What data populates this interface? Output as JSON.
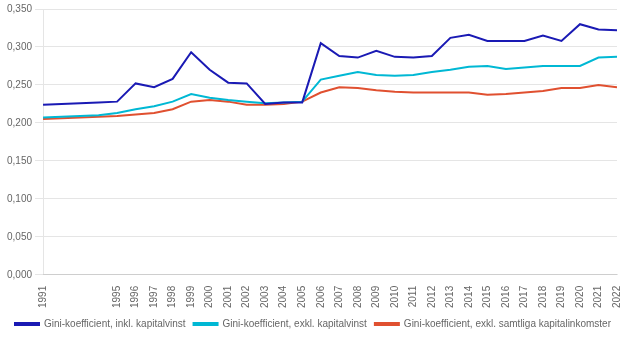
{
  "chart_data": {
    "type": "line",
    "x": [
      1991,
      1992,
      1993,
      1994,
      1995,
      1996,
      1997,
      1998,
      1999,
      2000,
      2001,
      2002,
      2003,
      2004,
      2005,
      2006,
      2007,
      2008,
      2009,
      2010,
      2011,
      2012,
      2013,
      2014,
      2015,
      2016,
      2017,
      2018,
      2019,
      2020,
      2021,
      2022
    ],
    "series": [
      {
        "name": "Gini-koefficient, inkl. kapitalvinst",
        "color": "#1a1ab4",
        "values": [
          0.224,
          0.225,
          0.226,
          0.227,
          0.228,
          0.252,
          0.247,
          0.258,
          0.293,
          0.27,
          0.253,
          0.252,
          0.225,
          0.227,
          0.227,
          0.305,
          0.288,
          0.286,
          0.295,
          0.287,
          0.286,
          0.288,
          0.312,
          0.316,
          0.308,
          0.308,
          0.308,
          0.315,
          0.308,
          0.33,
          0.323,
          0.322
        ]
      },
      {
        "name": "Gini-koefficient, exkl. kapitalvinst",
        "color": "#00b8d4",
        "values": [
          0.207,
          0.208,
          0.209,
          0.21,
          0.213,
          0.218,
          0.222,
          0.228,
          0.238,
          0.233,
          0.23,
          0.228,
          0.226,
          0.227,
          0.228,
          0.257,
          0.262,
          0.267,
          0.263,
          0.262,
          0.263,
          0.267,
          0.27,
          0.274,
          0.275,
          0.271,
          0.273,
          0.275,
          0.275,
          0.275,
          0.286,
          0.287
        ]
      },
      {
        "name": "Gini-koefficient, exkl. samtliga kapitalinkomster",
        "color": "#e05030",
        "values": [
          0.205,
          0.206,
          0.207,
          0.208,
          0.209,
          0.211,
          0.213,
          0.218,
          0.228,
          0.23,
          0.228,
          0.224,
          0.224,
          0.225,
          0.228,
          0.24,
          0.247,
          0.246,
          0.243,
          0.241,
          0.24,
          0.24,
          0.24,
          0.24,
          0.237,
          0.238,
          0.24,
          0.242,
          0.246,
          0.246,
          0.25,
          0.247
        ]
      }
    ],
    "xlim": [
      1991,
      2022
    ],
    "xticks": [
      1991,
      1995,
      1996,
      1997,
      1998,
      1999,
      2000,
      2001,
      2002,
      2003,
      2004,
      2005,
      2006,
      2007,
      2008,
      2009,
      2010,
      2011,
      2012,
      2013,
      2014,
      2015,
      2016,
      2017,
      2018,
      2019,
      2020,
      2021,
      2022
    ],
    "ylim": [
      0.0,
      0.35
    ],
    "yticks": [
      {
        "value": 0.0,
        "label": "0,000"
      },
      {
        "value": 0.05,
        "label": "0,050"
      },
      {
        "value": 0.1,
        "label": "0,100"
      },
      {
        "value": 0.15,
        "label": "0,150"
      },
      {
        "value": 0.2,
        "label": "0,200"
      },
      {
        "value": 0.25,
        "label": "0,250"
      },
      {
        "value": 0.3,
        "label": "0,300"
      },
      {
        "value": 0.35,
        "label": "0,350"
      }
    ],
    "grid": true,
    "legend": "bottom"
  }
}
